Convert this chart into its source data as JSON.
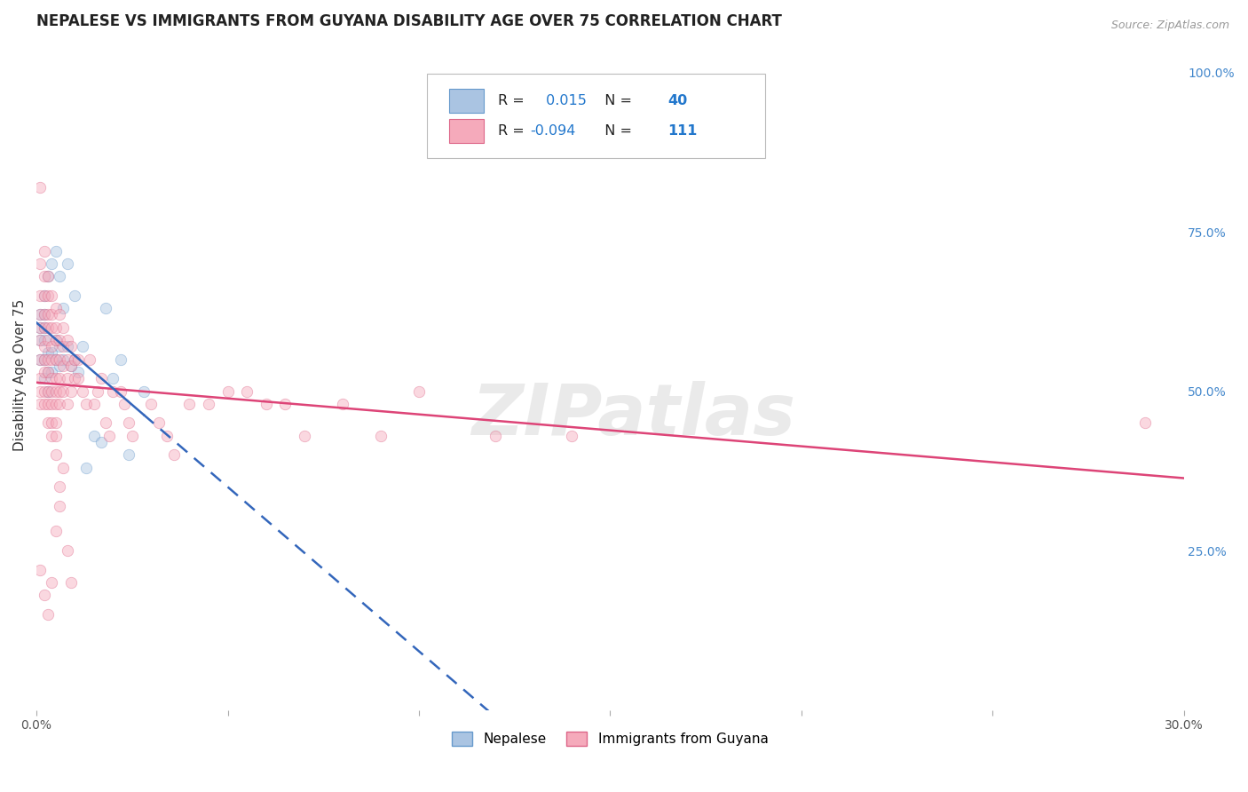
{
  "title": "NEPALESE VS IMMIGRANTS FROM GUYANA DISABILITY AGE OVER 75 CORRELATION CHART",
  "source": "Source: ZipAtlas.com",
  "ylabel": "Disability Age Over 75",
  "xlim": [
    0.0,
    0.3
  ],
  "ylim": [
    0.0,
    1.05
  ],
  "xticks": [
    0.0,
    0.05,
    0.1,
    0.15,
    0.2,
    0.25,
    0.3
  ],
  "xticklabels": [
    "0.0%",
    "",
    "",
    "",
    "",
    "",
    "30.0%"
  ],
  "yticks_right": [
    0.25,
    0.5,
    0.75,
    1.0
  ],
  "ytick_right_labels": [
    "25.0%",
    "50.0%",
    "75.0%",
    "100.0%"
  ],
  "nepalese": {
    "name": "Nepalese",
    "R": 0.015,
    "N": 40,
    "color": "#aac4e2",
    "edge_color": "#6699cc",
    "trend_color": "#3366bb",
    "x": [
      0.001,
      0.001,
      0.001,
      0.001,
      0.002,
      0.002,
      0.002,
      0.002,
      0.002,
      0.002,
      0.003,
      0.003,
      0.003,
      0.003,
      0.004,
      0.004,
      0.004,
      0.005,
      0.005,
      0.005,
      0.006,
      0.006,
      0.006,
      0.007,
      0.007,
      0.008,
      0.008,
      0.009,
      0.01,
      0.01,
      0.011,
      0.012,
      0.013,
      0.015,
      0.017,
      0.018,
      0.02,
      0.022,
      0.024,
      0.028
    ],
    "y": [
      0.55,
      0.58,
      0.6,
      0.62,
      0.52,
      0.55,
      0.58,
      0.6,
      0.62,
      0.65,
      0.5,
      0.53,
      0.56,
      0.68,
      0.53,
      0.56,
      0.7,
      0.55,
      0.58,
      0.72,
      0.54,
      0.57,
      0.68,
      0.55,
      0.63,
      0.57,
      0.7,
      0.54,
      0.55,
      0.65,
      0.53,
      0.57,
      0.38,
      0.43,
      0.42,
      0.63,
      0.52,
      0.55,
      0.4,
      0.5
    ]
  },
  "guyana": {
    "name": "Immigrants from Guyana",
    "R": -0.094,
    "N": 111,
    "color": "#f5aabb",
    "edge_color": "#dd6688",
    "trend_color": "#dd4477",
    "x": [
      0.001,
      0.001,
      0.001,
      0.001,
      0.001,
      0.001,
      0.001,
      0.001,
      0.001,
      0.001,
      0.002,
      0.002,
      0.002,
      0.002,
      0.002,
      0.002,
      0.002,
      0.002,
      0.002,
      0.002,
      0.003,
      0.003,
      0.003,
      0.003,
      0.003,
      0.003,
      0.003,
      0.003,
      0.003,
      0.003,
      0.004,
      0.004,
      0.004,
      0.004,
      0.004,
      0.004,
      0.004,
      0.004,
      0.004,
      0.004,
      0.005,
      0.005,
      0.005,
      0.005,
      0.005,
      0.005,
      0.005,
      0.005,
      0.005,
      0.005,
      0.006,
      0.006,
      0.006,
      0.006,
      0.006,
      0.006,
      0.007,
      0.007,
      0.007,
      0.007,
      0.008,
      0.008,
      0.008,
      0.008,
      0.009,
      0.009,
      0.009,
      0.01,
      0.01,
      0.011,
      0.011,
      0.012,
      0.013,
      0.014,
      0.015,
      0.016,
      0.017,
      0.018,
      0.019,
      0.02,
      0.022,
      0.023,
      0.024,
      0.025,
      0.03,
      0.032,
      0.034,
      0.036,
      0.04,
      0.045,
      0.05,
      0.055,
      0.06,
      0.065,
      0.07,
      0.08,
      0.09,
      0.1,
      0.12,
      0.14,
      0.001,
      0.002,
      0.003,
      0.004,
      0.005,
      0.006,
      0.006,
      0.007,
      0.008,
      0.009,
      0.29
    ],
    "y": [
      0.82,
      0.7,
      0.65,
      0.62,
      0.6,
      0.58,
      0.55,
      0.52,
      0.5,
      0.48,
      0.72,
      0.68,
      0.65,
      0.62,
      0.6,
      0.57,
      0.55,
      0.53,
      0.5,
      0.48,
      0.68,
      0.65,
      0.62,
      0.6,
      0.58,
      0.55,
      0.53,
      0.5,
      0.48,
      0.45,
      0.65,
      0.62,
      0.6,
      0.57,
      0.55,
      0.52,
      0.5,
      0.48,
      0.45,
      0.43,
      0.63,
      0.6,
      0.58,
      0.55,
      0.52,
      0.5,
      0.48,
      0.45,
      0.43,
      0.4,
      0.62,
      0.58,
      0.55,
      0.52,
      0.5,
      0.48,
      0.6,
      0.57,
      0.54,
      0.5,
      0.58,
      0.55,
      0.52,
      0.48,
      0.57,
      0.54,
      0.5,
      0.55,
      0.52,
      0.55,
      0.52,
      0.5,
      0.48,
      0.55,
      0.48,
      0.5,
      0.52,
      0.45,
      0.43,
      0.5,
      0.5,
      0.48,
      0.45,
      0.43,
      0.48,
      0.45,
      0.43,
      0.4,
      0.48,
      0.48,
      0.5,
      0.5,
      0.48,
      0.48,
      0.43,
      0.48,
      0.43,
      0.5,
      0.43,
      0.43,
      0.22,
      0.18,
      0.15,
      0.2,
      0.28,
      0.32,
      0.35,
      0.38,
      0.25,
      0.2,
      0.45
    ]
  },
  "watermark": "ZIPatlas",
  "background_color": "#ffffff",
  "grid_color": "#cccccc",
  "title_fontsize": 12,
  "axis_label_fontsize": 11,
  "tick_fontsize": 10,
  "marker_size": 80,
  "marker_alpha": 0.45
}
